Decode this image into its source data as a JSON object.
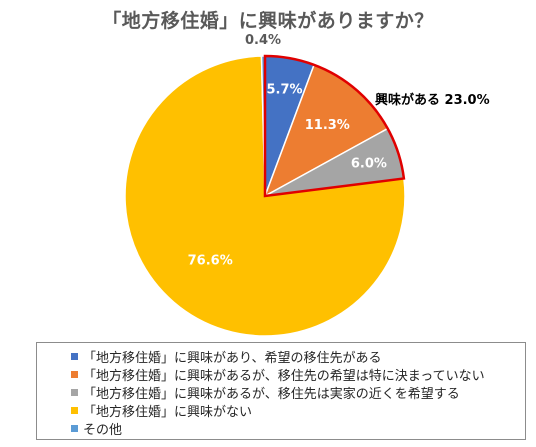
{
  "chart_data": {
    "type": "pie",
    "title": "「地方移住婚」に興味がありますか？",
    "slices": [
      {
        "label": "「地方移住婚」に興味があり、希望の移住先がある",
        "value": 5.7,
        "display": "5.7%",
        "color": "#4472c4"
      },
      {
        "label": "「地方移住婚」に興味があるが、移住先の希望は特に決まっていない",
        "value": 11.3,
        "display": "11.3%",
        "color": "#ed7d31"
      },
      {
        "label": "「地方移住婚」に興味があるが、移住先は実家の近くを希望する",
        "value": 6.0,
        "display": "6.0%",
        "color": "#a5a5a5"
      },
      {
        "label": "「地方移住婚」に興味がない",
        "value": 76.6,
        "display": "76.6%",
        "color": "#ffc000"
      },
      {
        "label": "その他",
        "value": 0.4,
        "display": "0.4%",
        "color": "#5b9bd5"
      }
    ],
    "annotation": {
      "text": "興味がある 23.0%",
      "highlight_color": "#e00000"
    },
    "legend_position": "bottom"
  }
}
